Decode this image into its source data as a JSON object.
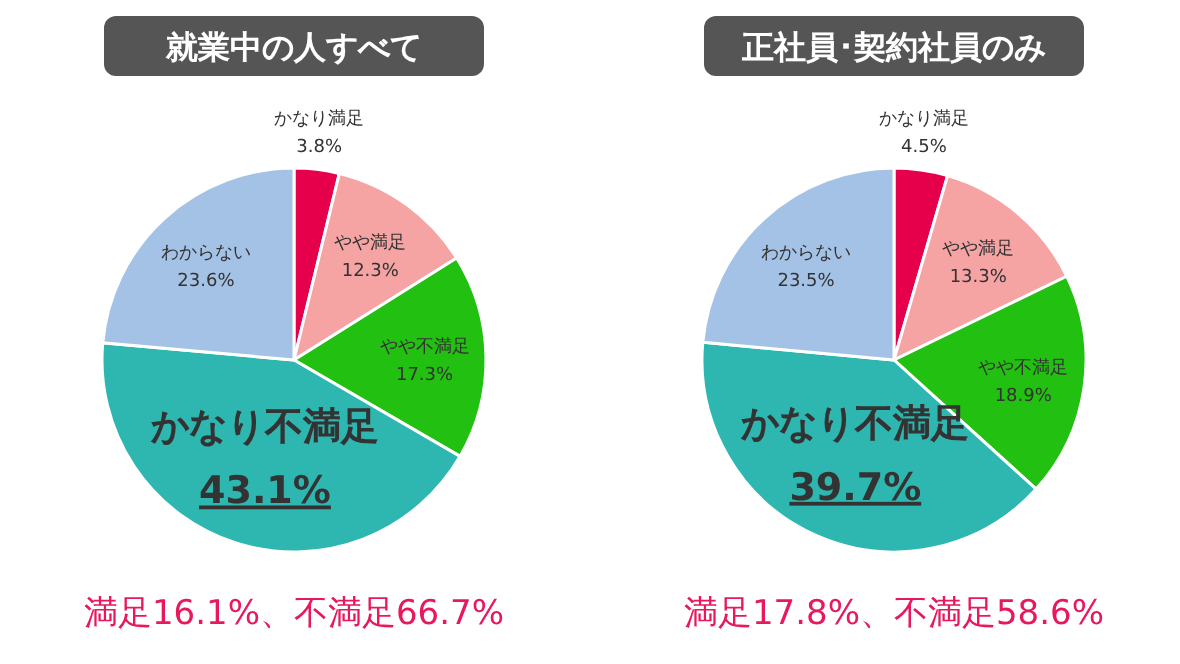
{
  "chart_data": [
    {
      "type": "pie",
      "title": "就業中の人すべて",
      "categories": [
        "かなり満足",
        "やや満足",
        "やや不満足",
        "かなり不満足",
        "わからない"
      ],
      "values": [
        3.8,
        12.3,
        17.3,
        43.1,
        23.6
      ],
      "colors": [
        "#e6004c",
        "#f5a3a3",
        "#22c010",
        "#2db7b0",
        "#a3c2e6"
      ],
      "value_labels": [
        "3.8%",
        "12.3%",
        "17.3%",
        "43.1%",
        "23.6%"
      ],
      "annotations": [
        "満足16.1%、不満足66.7%"
      ]
    },
    {
      "type": "pie",
      "title": "正社員･契約社員のみ",
      "categories": [
        "かなり満足",
        "やや満足",
        "やや不満足",
        "かなり不満足",
        "わからない"
      ],
      "values": [
        4.5,
        13.3,
        18.9,
        39.7,
        23.5
      ],
      "colors": [
        "#e6004c",
        "#f5a3a3",
        "#22c010",
        "#2db7b0",
        "#a3c2e6"
      ],
      "value_labels": [
        "4.5%",
        "13.3%",
        "18.9%",
        "39.7%",
        "23.5%"
      ],
      "annotations": [
        "満足17.8%、不満足58.6%"
      ]
    }
  ]
}
